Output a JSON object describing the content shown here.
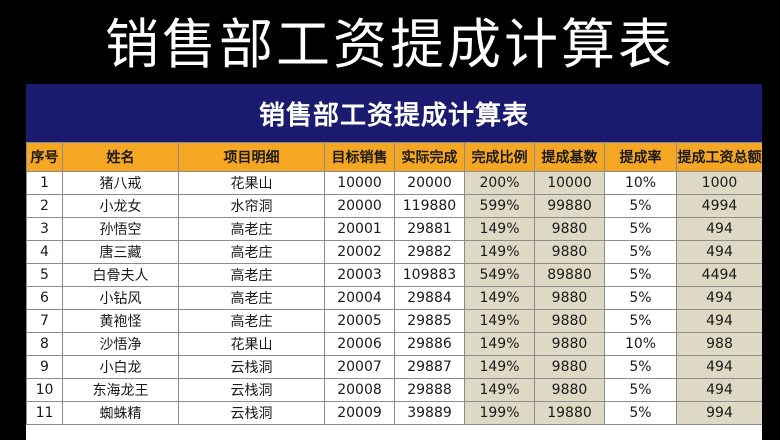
{
  "banner_title": "销售部工资提成计算表",
  "sheet_title": "销售部工资提成计算表",
  "headers": [
    "序号",
    "姓名",
    "项目明细",
    "目标销售",
    "实际完成",
    "完成比例",
    "提成基数",
    "提成率",
    "提成工资总额"
  ],
  "rows": [
    [
      "1",
      "猪八戒",
      "花果山",
      "10000",
      "20000",
      "200%",
      "10000",
      "10%",
      "1000"
    ],
    [
      "2",
      "小龙女",
      "水帘洞",
      "20000",
      "119880",
      "599%",
      "99880",
      "5%",
      "4994"
    ],
    [
      "3",
      "孙悟空",
      "高老庄",
      "20001",
      "29881",
      "149%",
      "9880",
      "5%",
      "494"
    ],
    [
      "4",
      "唐三藏",
      "高老庄",
      "20002",
      "29882",
      "149%",
      "9880",
      "5%",
      "494"
    ],
    [
      "5",
      "白骨夫人",
      "高老庄",
      "20003",
      "109883",
      "549%",
      "89880",
      "5%",
      "4494"
    ],
    [
      "6",
      "小钻风",
      "高老庄",
      "20004",
      "29884",
      "149%",
      "9880",
      "5%",
      "494"
    ],
    [
      "7",
      "黄袍怪",
      "高老庄",
      "20005",
      "29885",
      "149%",
      "9880",
      "5%",
      "494"
    ],
    [
      "8",
      "沙悟净",
      "花果山",
      "20006",
      "29886",
      "149%",
      "9880",
      "10%",
      "988"
    ],
    [
      "9",
      "小白龙",
      "云栈洞",
      "20007",
      "29887",
      "149%",
      "9880",
      "5%",
      "494"
    ],
    [
      "10",
      "东海龙王",
      "云栈洞",
      "20008",
      "29888",
      "149%",
      "9880",
      "5%",
      "494"
    ],
    [
      "11",
      "蜘蛛精",
      "云栈洞",
      "20009",
      "39889",
      "199%",
      "19880",
      "5%",
      "994"
    ]
  ],
  "colors": {
    "title_bar": "#1a1a6e",
    "header_fill": "#f5a623",
    "shaded_cells": "#ddd9c4"
  }
}
